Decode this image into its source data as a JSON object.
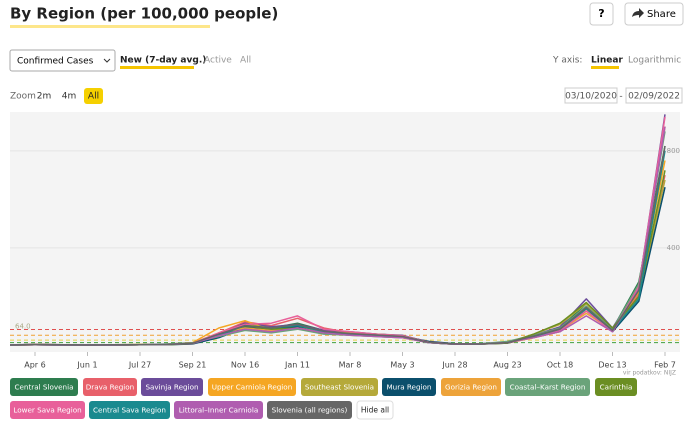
{
  "ui": {
    "title": "By Region (per 100,000 people)",
    "help": "?",
    "share": "Share",
    "select": "Confirmed Cases",
    "tabs": [
      "New (7-day avg.)",
      "Active",
      "All"
    ],
    "y_axis_label": "Y axis:",
    "scales": [
      "Linear",
      "Logarithmic"
    ],
    "zoom_label": "Zoom",
    "zoom": [
      "2m",
      "4m",
      "All"
    ],
    "date_from": "03/10/2020",
    "date_sep": "-",
    "date_to": "02/09/2022",
    "source": "vir podatkov: NIJZ",
    "hide_all": "Hide all"
  },
  "chart_data": {
    "type": "line",
    "categories": [
      null,
      "Apr 6",
      null,
      "Jun 1",
      null,
      "Jul 27",
      null,
      "Sep 21",
      null,
      "Nov 16",
      null,
      "Jan 11",
      null,
      "Mar 8",
      null,
      "May 3",
      null,
      "Jun 28",
      null,
      "Aug 23",
      null,
      "Oct 18",
      null,
      "Dec 13",
      null,
      "Feb 7"
    ],
    "ylim": [
      0,
      960
    ],
    "yticks": [
      400,
      800
    ],
    "thresholds": [
      {
        "value": 64,
        "label": "64.0",
        "color": "#e05050"
      },
      {
        "value": 40,
        "color": "#f0a030"
      },
      {
        "value": 20,
        "color": "#e8d040"
      },
      {
        "value": 10,
        "color": "#40a040"
      }
    ],
    "series": [
      {
        "name": "Central Slovenia",
        "color": "#2e7d4f",
        "values": [
          0,
          2,
          1,
          0,
          1,
          2,
          3,
          8,
          40,
          75,
          70,
          90,
          60,
          50,
          45,
          38,
          12,
          4,
          5,
          12,
          40,
          70,
          170,
          65,
          260,
          820
        ]
      },
      {
        "name": "Drava Region",
        "color": "#e8606a",
        "values": [
          0,
          1,
          1,
          0,
          0,
          1,
          2,
          6,
          50,
          95,
          80,
          110,
          70,
          50,
          40,
          32,
          10,
          3,
          4,
          9,
          30,
          55,
          150,
          55,
          210,
          700
        ]
      },
      {
        "name": "Savinja Region",
        "color": "#6b4c9a",
        "values": [
          0,
          3,
          1,
          0,
          0,
          1,
          2,
          5,
          45,
          90,
          75,
          85,
          60,
          55,
          45,
          40,
          12,
          4,
          5,
          10,
          40,
          75,
          190,
          70,
          240,
          950
        ]
      },
      {
        "name": "Upper Carniola Region",
        "color": "#f5a623",
        "values": [
          0,
          2,
          1,
          0,
          1,
          2,
          3,
          10,
          70,
          100,
          60,
          80,
          50,
          40,
          35,
          30,
          10,
          3,
          4,
          8,
          30,
          55,
          140,
          60,
          220,
          760
        ]
      },
      {
        "name": "Southeast Slovenia",
        "color": "#b5a93a",
        "values": [
          0,
          1,
          0,
          0,
          0,
          1,
          2,
          6,
          40,
          85,
          70,
          80,
          55,
          50,
          45,
          38,
          12,
          4,
          4,
          10,
          45,
          85,
          170,
          60,
          200,
          680
        ]
      },
      {
        "name": "Mura Region",
        "color": "#0b4f6c",
        "values": [
          0,
          1,
          0,
          0,
          0,
          1,
          1,
          4,
          30,
          70,
          65,
          75,
          50,
          45,
          40,
          35,
          15,
          5,
          4,
          8,
          35,
          65,
          150,
          55,
          180,
          650
        ]
      },
      {
        "name": "Gorizia Region",
        "color": "#eda33a",
        "values": [
          0,
          1,
          1,
          0,
          0,
          1,
          3,
          8,
          50,
          70,
          60,
          70,
          55,
          45,
          40,
          30,
          10,
          3,
          4,
          12,
          35,
          60,
          130,
          60,
          230,
          900
        ]
      },
      {
        "name": "Coastal–Karst Region",
        "color": "#6aa37a",
        "values": [
          0,
          1,
          1,
          0,
          0,
          1,
          4,
          9,
          35,
          60,
          50,
          65,
          45,
          40,
          35,
          30,
          10,
          3,
          5,
          15,
          40,
          70,
          160,
          65,
          250,
          880
        ]
      },
      {
        "name": "Carinthia",
        "color": "#6b8e23",
        "values": [
          0,
          1,
          0,
          0,
          0,
          1,
          1,
          5,
          45,
          80,
          65,
          70,
          50,
          42,
          38,
          32,
          10,
          3,
          4,
          8,
          45,
          90,
          175,
          70,
          200,
          720
        ]
      },
      {
        "name": "Lower Sava Region",
        "color": "#e8609a",
        "values": [
          0,
          1,
          0,
          0,
          0,
          1,
          2,
          7,
          50,
          85,
          90,
          120,
          65,
          55,
          45,
          38,
          12,
          4,
          4,
          10,
          35,
          60,
          140,
          55,
          240,
          940
        ]
      },
      {
        "name": "Central Sava Region",
        "color": "#1a8a8f",
        "values": [
          0,
          1,
          0,
          0,
          0,
          1,
          2,
          6,
          40,
          80,
          70,
          80,
          55,
          45,
          40,
          32,
          10,
          3,
          4,
          10,
          35,
          65,
          150,
          60,
          190,
          800
        ]
      },
      {
        "name": "Littoral–Inner Carniola",
        "color": "#b05db0",
        "values": [
          0,
          1,
          0,
          0,
          0,
          1,
          2,
          6,
          38,
          65,
          55,
          70,
          50,
          40,
          35,
          30,
          10,
          3,
          4,
          10,
          30,
          55,
          120,
          55,
          230,
          900
        ]
      },
      {
        "name": "Slovenia (all regions)",
        "color": "#666666",
        "values": [
          0,
          2,
          1,
          0,
          1,
          1,
          2,
          7,
          45,
          80,
          70,
          85,
          57,
          47,
          41,
          35,
          11,
          4,
          4,
          10,
          37,
          66,
          155,
          60,
          225,
          820
        ]
      }
    ]
  }
}
